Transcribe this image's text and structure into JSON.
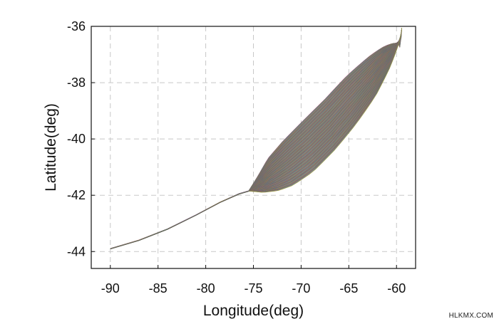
{
  "chart_data": {
    "type": "line",
    "xlabel": "Longitude(deg)",
    "ylabel": "Latitude(deg)",
    "xlim": [
      -92,
      -58
    ],
    "ylim": [
      -44.6,
      -36
    ],
    "xticks": [
      -90,
      -85,
      -80,
      -75,
      -70,
      -65,
      -60
    ],
    "yticks": [
      -36,
      -38,
      -40,
      -42,
      -44
    ],
    "xtick_labels": [
      "-90",
      "-85",
      "-80",
      "-75",
      "-70",
      "-65",
      "-60"
    ],
    "ytick_labels": [
      "-36",
      "-38",
      "-40",
      "-42",
      "-44"
    ],
    "grid": true,
    "grid_style": "dashed",
    "trunk": {
      "x": [
        -90.0,
        -87.0,
        -84.0,
        -81.0,
        -78.5,
        -76.5,
        -75.5
      ],
      "y": [
        -43.9,
        -43.6,
        -43.2,
        -42.7,
        -42.25,
        -41.95,
        -41.85
      ]
    },
    "fan": {
      "description": "bundle of many thin multi-colored trajectories diverging from the trunk end",
      "envelope_upper": {
        "x": [
          -75.5,
          -74.5,
          -73.5,
          -72.0,
          -70.0,
          -68.0,
          -66.0,
          -64.0,
          -62.5,
          -61.0,
          -60.0
        ],
        "y": [
          -41.85,
          -41.3,
          -40.7,
          -40.1,
          -39.4,
          -38.7,
          -37.9,
          -37.2,
          -36.7,
          -36.3,
          -36.1
        ]
      },
      "envelope_lower": {
        "x": [
          -75.5,
          -74.0,
          -72.5,
          -71.0,
          -69.0,
          -67.0,
          -65.0,
          -63.0,
          -61.5,
          -60.3,
          -59.5
        ],
        "y": [
          -41.85,
          -41.9,
          -41.85,
          -41.7,
          -41.3,
          -40.7,
          -40.0,
          -39.2,
          -38.4,
          -37.6,
          -36.8
        ]
      },
      "tip": {
        "x": -59.5,
        "y": -36.4
      },
      "colors": [
        "#d94b4b",
        "#3a57c4",
        "#2f9a47",
        "#c97b1f",
        "#8a3fb0",
        "#1b9aa8",
        "#b89a24",
        "#555555"
      ]
    }
  },
  "watermark": "HLKMX.COM"
}
